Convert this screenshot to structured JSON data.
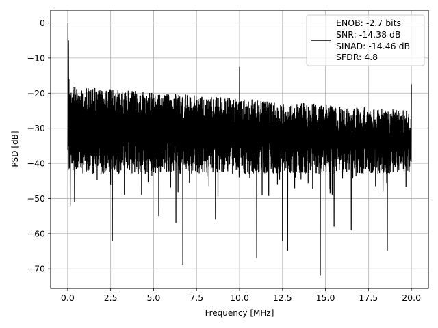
{
  "chart_data": {
    "type": "line",
    "title": "",
    "xlabel": "Frequency [MHz]",
    "ylabel": "PSD [dB]",
    "xlim": [
      -0.99,
      20.99
    ],
    "ylim": [
      -75.6,
      3.6
    ],
    "xticks": [
      0.0,
      2.5,
      5.0,
      7.5,
      10.0,
      12.5,
      15.0,
      17.5,
      20.0
    ],
    "xtick_labels": [
      "0.0",
      "2.5",
      "5.0",
      "7.5",
      "10.0",
      "12.5",
      "15.0",
      "17.5",
      "20.0"
    ],
    "yticks": [
      0,
      -10,
      -20,
      -30,
      -40,
      -50,
      -60,
      -70
    ],
    "ytick_labels": [
      "0",
      "−10",
      "−20",
      "−30",
      "−40",
      "−50",
      "−60",
      "−70"
    ],
    "grid": true,
    "legend_position": "top-right",
    "series": [
      {
        "name": "ENOB: -2.7 bits\nSNR: -14.38 dB\nSINAD: -14.46 dB\nSFDR: 4.8",
        "color": "#000000",
        "x_range": [
          0,
          20
        ],
        "noise_ceiling_start_dB": -16,
        "noise_ceiling_end_dB": -23,
        "noise_floor_typical_dB": -45,
        "points": [
          {
            "x": 0.0,
            "y": -36
          },
          {
            "x": 0.02,
            "y": 0
          },
          {
            "x": 0.05,
            "y": -5
          },
          {
            "x": 0.08,
            "y": -16
          },
          {
            "x": 0.15,
            "y": -52
          },
          {
            "x": 0.4,
            "y": -51
          },
          {
            "x": 2.6,
            "y": -62
          },
          {
            "x": 3.3,
            "y": -49
          },
          {
            "x": 4.3,
            "y": -49
          },
          {
            "x": 5.3,
            "y": -55
          },
          {
            "x": 6.3,
            "y": -57
          },
          {
            "x": 6.7,
            "y": -69
          },
          {
            "x": 8.6,
            "y": -56
          },
          {
            "x": 10.0,
            "y": -12.5
          },
          {
            "x": 11.0,
            "y": -67
          },
          {
            "x": 12.5,
            "y": -62
          },
          {
            "x": 12.8,
            "y": -65
          },
          {
            "x": 14.7,
            "y": -72
          },
          {
            "x": 15.5,
            "y": -58
          },
          {
            "x": 16.5,
            "y": -59
          },
          {
            "x": 18.6,
            "y": -65
          },
          {
            "x": 20.0,
            "y": -17.5
          }
        ]
      }
    ]
  },
  "legend": {
    "lines": [
      "ENOB: -2.7 bits",
      "SNR: -14.38 dB",
      "SINAD: -14.46 dB",
      "SFDR: 4.8"
    ]
  }
}
